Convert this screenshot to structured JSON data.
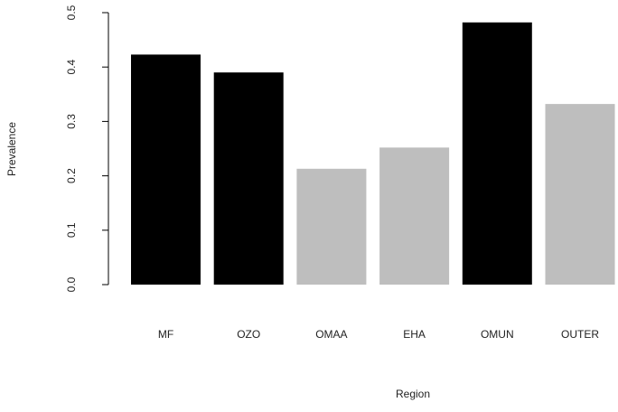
{
  "chart_data": {
    "type": "bar",
    "categories": [
      "MF",
      "OZO",
      "OMAA",
      "EHA",
      "OMUN",
      "OUTER"
    ],
    "values": [
      0.423,
      0.39,
      0.213,
      0.252,
      0.482,
      0.332
    ],
    "bar_colors": [
      "#000000",
      "#000000",
      "#bebebe",
      "#bebebe",
      "#000000",
      "#bebebe"
    ],
    "xlabel": "Region",
    "ylabel": "Prevalence",
    "ylim": [
      0,
      0.5
    ],
    "yticks": [
      "0.0",
      "0.1",
      "0.2",
      "0.3",
      "0.4",
      "0.5"
    ],
    "grid": false,
    "legend": "none"
  }
}
